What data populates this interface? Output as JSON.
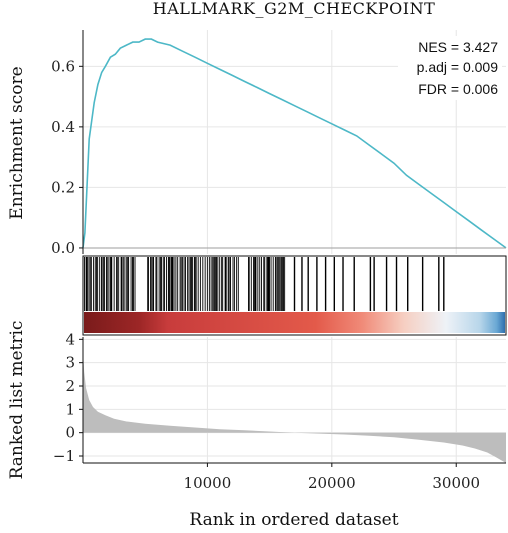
{
  "chart_data": {
    "type": "line",
    "title": "HALLMARK_G2M_CHECKPOINT",
    "xlabel": "Rank in ordered dataset",
    "xlim": [
      0,
      34000
    ],
    "x_ticks": [
      10000,
      20000,
      30000
    ],
    "grid": true,
    "stats": [
      "NES = 3.427",
      "p.adj = 0.009",
      "FDR = 0.006"
    ],
    "colors": {
      "running_score": "#4db8c7",
      "hits": "#000000",
      "ranked_area": "#bdbdbd",
      "gradient_stops": [
        "#7a1b1b",
        "#b22a2a",
        "#c83c3c",
        "#e35a4a",
        "#f08a78",
        "#f6cfc2",
        "#eef2f7",
        "#b8d6ea",
        "#6aa8d4",
        "#2e6fae"
      ]
    },
    "panels": [
      {
        "name": "running-enrichment-score",
        "ylabel": "Enrichment score",
        "ylim": [
          -0.02,
          0.72
        ],
        "y_ticks": [
          0.0,
          0.2,
          0.4,
          0.6
        ],
        "y_tick_labels": [
          "0.0",
          "0.2",
          "0.4",
          "0.6"
        ],
        "x": [
          0,
          150,
          300,
          500,
          700,
          900,
          1200,
          1500,
          1800,
          2200,
          2600,
          3000,
          3500,
          4000,
          4500,
          5000,
          5500,
          6000,
          7000,
          8000,
          9000,
          10000,
          11000,
          12000,
          13000,
          14000,
          15000,
          16000,
          17000,
          18000,
          19000,
          20000,
          21000,
          22000,
          23000,
          24000,
          25000,
          26000,
          27000,
          28000,
          29000,
          30000,
          31000,
          32000,
          33000,
          34000
        ],
        "y": [
          0.0,
          0.05,
          0.18,
          0.36,
          0.42,
          0.48,
          0.54,
          0.58,
          0.6,
          0.63,
          0.64,
          0.66,
          0.67,
          0.68,
          0.68,
          0.69,
          0.69,
          0.68,
          0.67,
          0.65,
          0.63,
          0.61,
          0.59,
          0.57,
          0.55,
          0.53,
          0.51,
          0.49,
          0.47,
          0.45,
          0.43,
          0.41,
          0.39,
          0.37,
          0.34,
          0.31,
          0.28,
          0.24,
          0.21,
          0.18,
          0.15,
          0.12,
          0.09,
          0.06,
          0.03,
          0.0
        ]
      },
      {
        "name": "gene-set-hits",
        "hits_dense_ranges": [
          [
            0,
            4200
          ],
          [
            5200,
            12500
          ],
          [
            13300,
            16300
          ]
        ],
        "hits_sparse": [
          17000,
          17600,
          18100,
          18800,
          19500,
          20200,
          20900,
          21800,
          23100,
          23400,
          24400,
          25200,
          26100,
          27300,
          28600,
          29000
        ]
      },
      {
        "name": "ranked-list-metric",
        "ylabel": "Ranked list metric",
        "ylim": [
          -1.3,
          4.1
        ],
        "y_ticks": [
          -1,
          0,
          1,
          2,
          3,
          4
        ],
        "y_tick_labels": [
          "−1",
          "0",
          "1",
          "2",
          "3",
          "4"
        ],
        "x": [
          0,
          100,
          250,
          500,
          800,
          1200,
          1800,
          2500,
          3500,
          5000,
          7000,
          9000,
          11000,
          13000,
          15000,
          17000,
          19000,
          21000,
          23000,
          25000,
          27000,
          29000,
          30500,
          31500,
          32500,
          33200,
          34000
        ],
        "y": [
          3.5,
          2.6,
          1.9,
          1.4,
          1.1,
          0.9,
          0.75,
          0.6,
          0.48,
          0.38,
          0.3,
          0.22,
          0.15,
          0.1,
          0.05,
          0.0,
          -0.04,
          -0.08,
          -0.13,
          -0.2,
          -0.3,
          -0.42,
          -0.55,
          -0.68,
          -0.85,
          -1.05,
          -1.3
        ]
      }
    ]
  }
}
